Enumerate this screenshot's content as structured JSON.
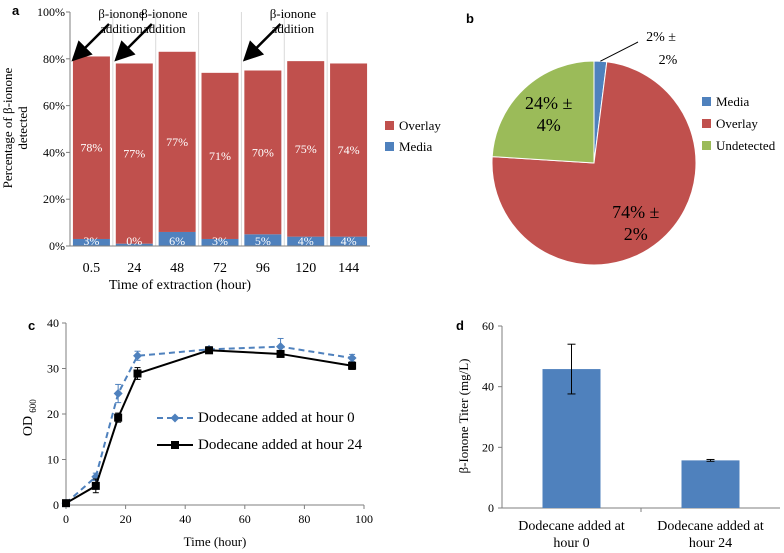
{
  "colors": {
    "media": "#4F81BD",
    "overlay": "#C0504D",
    "undetected": "#9BBB59",
    "line0": "#4F81BD",
    "line24": "#000000",
    "bar": "#4F81BD",
    "axis": "#7F7F7F",
    "grid": "#D9D9D9",
    "text": "#000000"
  },
  "chart_data": [
    {
      "panel": "a",
      "type": "bar",
      "stacked": true,
      "categories": [
        "0.5",
        "24",
        "48",
        "72",
        "96",
        "120",
        "144"
      ],
      "series": [
        {
          "name": "Media",
          "values": [
            3,
            0,
            6,
            3,
            5,
            4,
            4
          ],
          "labels": [
            "3%",
            "0%",
            "6%",
            "3%",
            "5%",
            "4%",
            "4%"
          ]
        },
        {
          "name": "Overlay",
          "values": [
            78,
            77,
            77,
            71,
            70,
            75,
            74
          ],
          "labels": [
            "78%",
            "77%",
            "77%",
            "71%",
            "70%",
            "75%",
            "74%"
          ]
        }
      ],
      "ylim": [
        0,
        100
      ],
      "yticks": [
        0,
        20,
        40,
        60,
        80,
        100
      ],
      "ytick_labels": [
        "0%",
        "20%",
        "40%",
        "60%",
        "80%",
        "100%"
      ],
      "xlabel": "Time of extraction (hour)",
      "ylabel_lines": [
        "Percentage of β-ionone",
        "detected"
      ],
      "legend": [
        "Overlay",
        "Media"
      ],
      "annotations": [
        {
          "lines": [
            "β-ionone",
            "addition"
          ],
          "category": "0.5"
        },
        {
          "lines": [
            "β-ionone",
            "addition"
          ],
          "category": "24"
        },
        {
          "lines": [
            "β-ionone",
            "addition"
          ],
          "category": "96"
        }
      ]
    },
    {
      "panel": "b",
      "type": "pie",
      "slices": [
        {
          "name": "Media",
          "value": 2,
          "label_lines": [
            "2% ±",
            "2%"
          ]
        },
        {
          "name": "Overlay",
          "value": 74,
          "label_lines": [
            "74% ±",
            "2%"
          ]
        },
        {
          "name": "Undetected",
          "value": 24,
          "label_lines": [
            "24% ±",
            "4%"
          ]
        }
      ],
      "legend": [
        "Media",
        "Overlay",
        "Undetected"
      ]
    },
    {
      "panel": "c",
      "type": "line",
      "series": [
        {
          "name": "Dodecane added at hour 0",
          "x": [
            0,
            10,
            17.5,
            24,
            48,
            72,
            96
          ],
          "y": [
            0.4,
            6.2,
            24.5,
            32.8,
            34.2,
            34.8,
            32.3
          ],
          "err": [
            0.3,
            0.8,
            2.0,
            1.0,
            0.6,
            1.8,
            0.8
          ]
        },
        {
          "name": "Dodecane added at hour 24",
          "x": [
            0,
            10,
            17.5,
            24,
            48,
            72,
            96
          ],
          "y": [
            0.4,
            4.2,
            19.2,
            28.9,
            34.0,
            33.2,
            30.6
          ],
          "err": [
            0.3,
            1.5,
            1.0,
            1.3,
            0.5,
            0.6,
            0.8
          ]
        }
      ],
      "xlim": [
        0,
        100
      ],
      "xticks": [
        0,
        20,
        40,
        60,
        80,
        100
      ],
      "ylim": [
        0,
        40
      ],
      "yticks": [
        0,
        10,
        20,
        30,
        40
      ],
      "xlabel": "Time (hour)",
      "ylabel": "OD",
      "ylabel_sub": "600"
    },
    {
      "panel": "d",
      "type": "bar",
      "categories": [
        [
          "Dodecane added at",
          "hour 0"
        ],
        [
          "Dodecane added at",
          "hour 24"
        ]
      ],
      "values": [
        45.8,
        15.7
      ],
      "err": [
        8.2,
        0.3
      ],
      "ylim": [
        0,
        60
      ],
      "yticks": [
        0,
        20,
        40,
        60
      ],
      "ylabel": "β-Ionone Titer (mg/L)"
    }
  ]
}
